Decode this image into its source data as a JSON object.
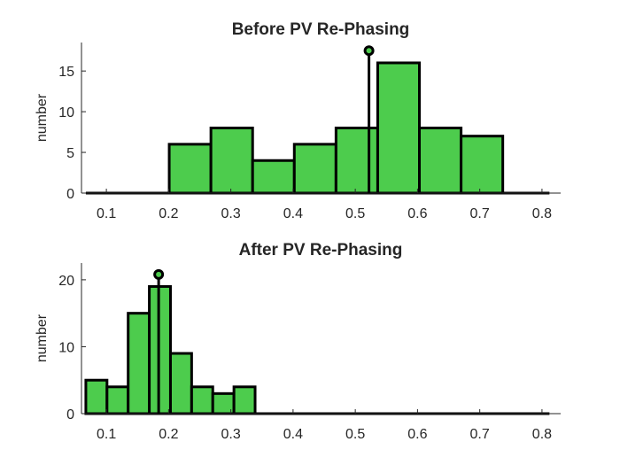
{
  "chart_data": [
    {
      "type": "bar",
      "title": "Before PV Re-Phasing",
      "xlabel": "",
      "ylabel": "number",
      "xlim": [
        0.06,
        0.83
      ],
      "ylim": [
        0,
        18.5
      ],
      "xticks": [
        "0.1",
        "0.2",
        "0.3",
        "0.4",
        "0.5",
        "0.6",
        "0.7",
        "0.8"
      ],
      "yticks": [
        "0",
        "5",
        "10",
        "15"
      ],
      "grid": false,
      "legend": "none",
      "bar_color": "#4dcc4d",
      "bins": [
        {
          "x0": 0.067,
          "x1": 0.134,
          "count": 0
        },
        {
          "x0": 0.134,
          "x1": 0.201,
          "count": 0
        },
        {
          "x0": 0.201,
          "x1": 0.268,
          "count": 6
        },
        {
          "x0": 0.268,
          "x1": 0.335,
          "count": 8
        },
        {
          "x0": 0.335,
          "x1": 0.402,
          "count": 4
        },
        {
          "x0": 0.402,
          "x1": 0.469,
          "count": 6
        },
        {
          "x0": 0.469,
          "x1": 0.536,
          "count": 8
        },
        {
          "x0": 0.536,
          "x1": 0.603,
          "count": 16
        },
        {
          "x0": 0.603,
          "x1": 0.67,
          "count": 8
        },
        {
          "x0": 0.67,
          "x1": 0.737,
          "count": 7
        },
        {
          "x0": 0.737,
          "x1": 0.804,
          "count": 0
        },
        {
          "x0": 0.804,
          "x1": 0.812,
          "count": 0
        }
      ],
      "marker": {
        "x": 0.522,
        "y": 17.5
      }
    },
    {
      "type": "bar",
      "title": "After PV Re-Phasing",
      "xlabel": "",
      "ylabel": "number",
      "xlim": [
        0.06,
        0.83
      ],
      "ylim": [
        0,
        22.5
      ],
      "xticks": [
        "0.1",
        "0.2",
        "0.3",
        "0.4",
        "0.5",
        "0.6",
        "0.7",
        "0.8"
      ],
      "yticks": [
        "0",
        "10",
        "20"
      ],
      "grid": false,
      "legend": "none",
      "bar_color": "#4dcc4d",
      "bins": [
        {
          "x0": 0.067,
          "x1": 0.101,
          "count": 5
        },
        {
          "x0": 0.101,
          "x1": 0.135,
          "count": 4
        },
        {
          "x0": 0.135,
          "x1": 0.169,
          "count": 15
        },
        {
          "x0": 0.169,
          "x1": 0.203,
          "count": 19
        },
        {
          "x0": 0.203,
          "x1": 0.237,
          "count": 9
        },
        {
          "x0": 0.237,
          "x1": 0.271,
          "count": 4
        },
        {
          "x0": 0.271,
          "x1": 0.305,
          "count": 3
        },
        {
          "x0": 0.305,
          "x1": 0.339,
          "count": 4
        },
        {
          "x0": 0.339,
          "x1": 0.812,
          "count": 0
        }
      ],
      "marker": {
        "x": 0.184,
        "y": 20.8
      }
    }
  ]
}
